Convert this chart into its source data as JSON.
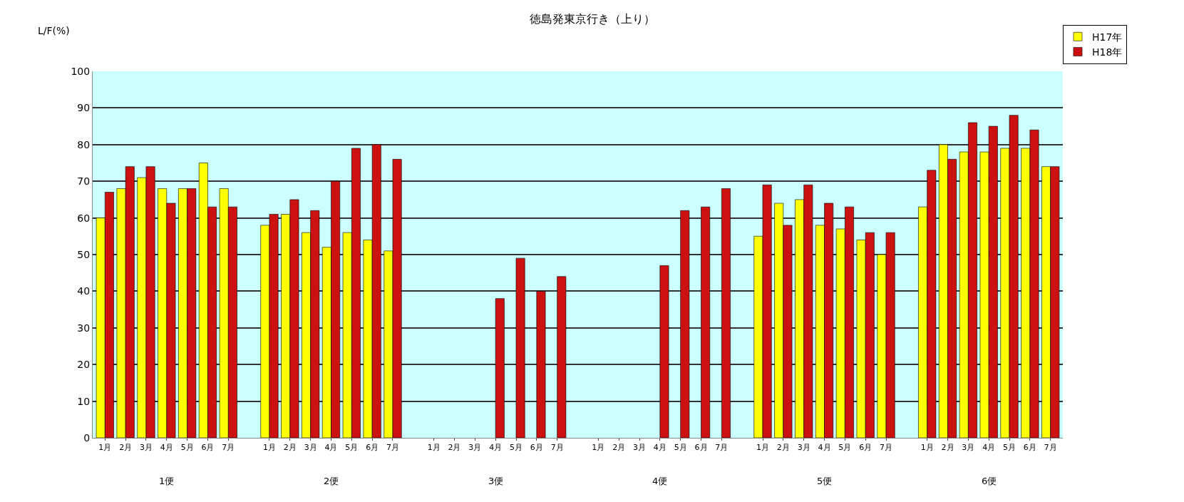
{
  "chart_data": {
    "type": "bar",
    "title": "徳島発東京行き（上り）",
    "ylabel": "L/F(%)",
    "categories": [
      "1月",
      "2月",
      "3月",
      "4月",
      "5月",
      "6月",
      "7月",
      "1月",
      "2月",
      "3月",
      "4月",
      "5月",
      "6月",
      "7月",
      "1月",
      "2月",
      "3月",
      "4月",
      "5月",
      "6月",
      "7月",
      "1月",
      "2月",
      "3月",
      "4月",
      "5月",
      "6月",
      "7月",
      "1月",
      "2月",
      "3月",
      "4月",
      "5月",
      "6月",
      "7月",
      "1月",
      "2月",
      "3月",
      "4月",
      "5月",
      "6月",
      "7月"
    ],
    "annotations": [
      "1便",
      "2便",
      "3便",
      "4便",
      "5便",
      "6便"
    ],
    "series": [
      {
        "name": "H17年",
        "color": "#ffff00",
        "values": [
          60,
          68,
          71,
          68,
          68,
          75,
          68,
          58,
          61,
          56,
          52,
          56,
          54,
          51,
          null,
          null,
          null,
          null,
          null,
          null,
          null,
          null,
          null,
          null,
          null,
          null,
          null,
          null,
          55,
          64,
          65,
          58,
          57,
          54,
          50,
          63,
          80,
          78,
          78,
          79,
          79,
          74
        ]
      },
      {
        "name": "H18年",
        "color": "#cc1111",
        "values": [
          67,
          74,
          74,
          64,
          68,
          63,
          63,
          61,
          65,
          62,
          70,
          79,
          80,
          76,
          null,
          null,
          null,
          38,
          49,
          40,
          44,
          null,
          null,
          null,
          47,
          62,
          63,
          68,
          69,
          58,
          69,
          64,
          63,
          56,
          56,
          73,
          76,
          86,
          85,
          88,
          84,
          74
        ]
      }
    ],
    "ylim": [
      0,
      100
    ],
    "yticks": [
      0,
      10,
      20,
      30,
      40,
      50,
      60,
      70,
      80,
      90,
      100
    ],
    "grid": "y",
    "legend": "top right"
  }
}
